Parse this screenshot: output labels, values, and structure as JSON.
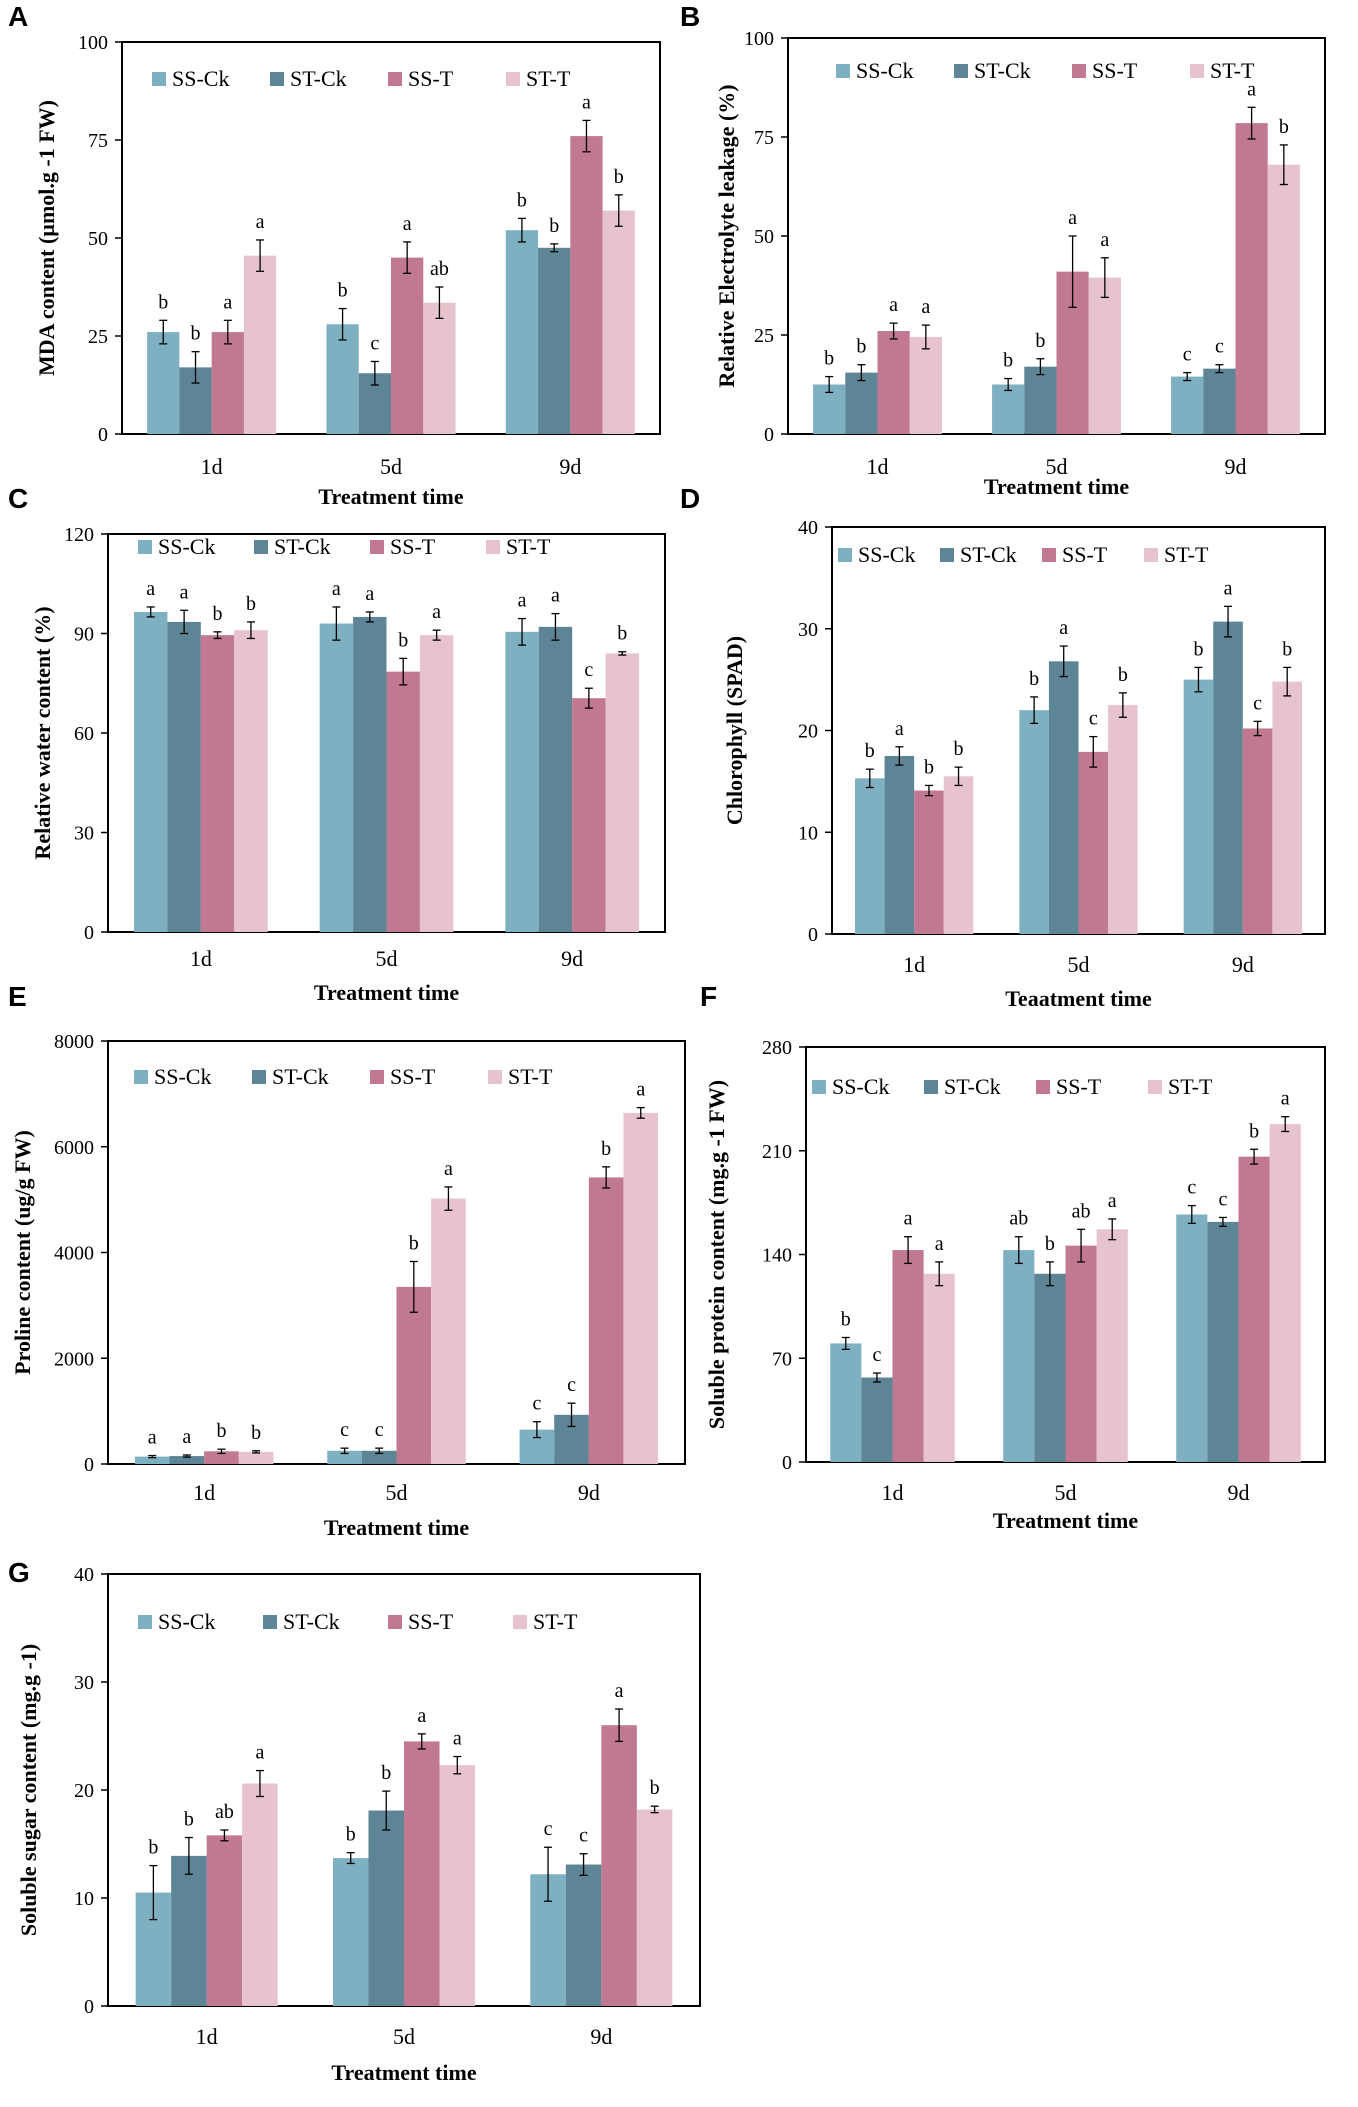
{
  "colors": {
    "SS-Ck": "#7fb0c2",
    "ST-Ck": "#5e8595",
    "SS-T": "#c07991",
    "ST-T": "#e7c4cd"
  },
  "chart_data": [
    {
      "panel": "A",
      "type": "bar",
      "categories": [
        "1d",
        "5d",
        "9d"
      ],
      "xlabel": "Treatment time",
      "ylabel": "MDA content (µmol.g -1 FW)",
      "ylim": [
        0,
        100
      ],
      "yticks": [
        "0",
        "25",
        "50",
        "75",
        "100"
      ],
      "legend": [
        "SS-Ck",
        "ST-Ck",
        "SS-T",
        "ST-T"
      ],
      "series": [
        {
          "name": "SS-Ck",
          "values": [
            26,
            28,
            52
          ],
          "errors": [
            3,
            4,
            3
          ],
          "labels": [
            "b",
            "b",
            "b"
          ]
        },
        {
          "name": "ST-Ck",
          "values": [
            17,
            15.5,
            47.5
          ],
          "errors": [
            4,
            3,
            1
          ],
          "labels": [
            "b",
            "c",
            "b"
          ]
        },
        {
          "name": "SS-T",
          "values": [
            26,
            45,
            76
          ],
          "errors": [
            3,
            4,
            4
          ],
          "labels": [
            "a",
            "a",
            "a"
          ]
        },
        {
          "name": "ST-T",
          "values": [
            45.5,
            33.5,
            57
          ],
          "errors": [
            4,
            4,
            4
          ],
          "labels": [
            "a",
            "ab",
            "b"
          ]
        }
      ]
    },
    {
      "panel": "B",
      "type": "bar",
      "categories": [
        "1d",
        "5d",
        "9d"
      ],
      "xlabel": "Treatment time",
      "ylabel": "Relative Electrolyte leakage (%)",
      "ylim": [
        0,
        100
      ],
      "yticks": [
        "0",
        "25",
        "50",
        "75",
        "100"
      ],
      "legend": [
        "SS-Ck",
        "ST-Ck",
        "SS-T",
        "ST-T"
      ],
      "series": [
        {
          "name": "SS-Ck",
          "values": [
            12.5,
            12.5,
            14.5
          ],
          "errors": [
            2,
            1.5,
            1
          ],
          "labels": [
            "b",
            "b",
            "c"
          ]
        },
        {
          "name": "ST-Ck",
          "values": [
            15.5,
            17,
            16.5
          ],
          "errors": [
            2,
            2,
            1
          ],
          "labels": [
            "b",
            "b",
            "c"
          ]
        },
        {
          "name": "SS-T",
          "values": [
            26,
            41,
            78.5
          ],
          "errors": [
            2,
            9,
            4
          ],
          "labels": [
            "a",
            "a",
            "a"
          ]
        },
        {
          "name": "ST-T",
          "values": [
            24.5,
            39.5,
            68
          ],
          "errors": [
            3,
            5,
            5
          ],
          "labels": [
            "a",
            "a",
            "b"
          ]
        }
      ]
    },
    {
      "panel": "C",
      "type": "bar",
      "categories": [
        "1d",
        "5d",
        "9d"
      ],
      "xlabel": "Treatment time",
      "ylabel": "Relative water content (%)",
      "ylim": [
        0,
        120
      ],
      "yticks": [
        "0",
        "30",
        "60",
        "90",
        "120"
      ],
      "legend": [
        "SS-Ck",
        "ST-Ck",
        "SS-T",
        "ST-T"
      ],
      "series": [
        {
          "name": "SS-Ck",
          "values": [
            96.5,
            93,
            90.5
          ],
          "errors": [
            1.5,
            5,
            4
          ],
          "labels": [
            "a",
            "a",
            "a"
          ]
        },
        {
          "name": "ST-Ck",
          "values": [
            93.5,
            95,
            92
          ],
          "errors": [
            3.5,
            1.5,
            4
          ],
          "labels": [
            "a",
            "a",
            "a"
          ]
        },
        {
          "name": "SS-T",
          "values": [
            89.5,
            78.5,
            70.5
          ],
          "errors": [
            1,
            4,
            3
          ],
          "labels": [
            "b",
            "b",
            "c"
          ]
        },
        {
          "name": "ST-T",
          "values": [
            91,
            89.5,
            84
          ],
          "errors": [
            2.5,
            1.5,
            0.5
          ],
          "labels": [
            "b",
            "a",
            "b"
          ]
        }
      ]
    },
    {
      "panel": "D",
      "type": "bar",
      "categories": [
        "1d",
        "5d",
        "9d"
      ],
      "xlabel": "Teaatment time",
      "ylabel": "Chlorophyll (SPAD)",
      "ylim": [
        0,
        40
      ],
      "yticks": [
        "0",
        "10",
        "20",
        "30",
        "40"
      ],
      "legend": [
        "SS-Ck",
        "ST-Ck",
        "SS-T",
        "ST-T"
      ],
      "series": [
        {
          "name": "SS-Ck",
          "values": [
            15.3,
            22,
            25
          ],
          "errors": [
            0.9,
            1.3,
            1.2
          ],
          "labels": [
            "b",
            "b",
            "b"
          ]
        },
        {
          "name": "ST-Ck",
          "values": [
            17.5,
            26.8,
            30.7
          ],
          "errors": [
            0.9,
            1.5,
            1.5
          ],
          "labels": [
            "a",
            "a",
            "a"
          ]
        },
        {
          "name": "SS-T",
          "values": [
            14.1,
            17.9,
            20.2
          ],
          "errors": [
            0.5,
            1.5,
            0.7
          ],
          "labels": [
            "b",
            "c",
            "c"
          ]
        },
        {
          "name": "ST-T",
          "values": [
            15.5,
            22.5,
            24.8
          ],
          "errors": [
            0.9,
            1.2,
            1.4
          ],
          "labels": [
            "b",
            "b",
            "b"
          ]
        }
      ]
    },
    {
      "panel": "E",
      "type": "bar",
      "categories": [
        "1d",
        "5d",
        "9d"
      ],
      "xlabel": "Treatment time",
      "ylabel": "Proline content (ug/g FW)",
      "ylim": [
        0,
        8000
      ],
      "yticks": [
        "0",
        "2000",
        "4000",
        "6000",
        "8000"
      ],
      "legend": [
        "SS-Ck",
        "ST-Ck",
        "SS-T",
        "ST-T"
      ],
      "series": [
        {
          "name": "SS-Ck",
          "values": [
            140,
            250,
            650
          ],
          "errors": [
            20,
            50,
            150
          ],
          "labels": [
            "a",
            "c",
            "c"
          ]
        },
        {
          "name": "ST-Ck",
          "values": [
            150,
            250,
            930
          ],
          "errors": [
            20,
            50,
            220
          ],
          "labels": [
            "a",
            "c",
            "c"
          ]
        },
        {
          "name": "SS-T",
          "values": [
            240,
            3350,
            5420
          ],
          "errors": [
            40,
            480,
            200
          ],
          "labels": [
            "b",
            "b",
            "b"
          ]
        },
        {
          "name": "ST-T",
          "values": [
            230,
            5020,
            6640
          ],
          "errors": [
            20,
            220,
            100
          ],
          "labels": [
            "b",
            "a",
            "a"
          ]
        }
      ]
    },
    {
      "panel": "F",
      "type": "bar",
      "categories": [
        "1d",
        "5d",
        "9d"
      ],
      "xlabel": "Treatment time",
      "ylabel": "Soluble protein content (mg.g -1 FW)",
      "ylim": [
        0,
        280
      ],
      "yticks": [
        "0",
        "70",
        "140",
        "210",
        "280"
      ],
      "legend": [
        "SS-Ck",
        "ST-Ck",
        "SS-T",
        "ST-T"
      ],
      "series": [
        {
          "name": "SS-Ck",
          "values": [
            80,
            143,
            167
          ],
          "errors": [
            4,
            9,
            6
          ],
          "labels": [
            "b",
            "ab",
            "c"
          ]
        },
        {
          "name": "ST-Ck",
          "values": [
            57,
            127,
            162
          ],
          "errors": [
            3,
            8,
            3
          ],
          "labels": [
            "c",
            "b",
            "c"
          ]
        },
        {
          "name": "SS-T",
          "values": [
            143,
            146,
            206
          ],
          "errors": [
            9,
            11,
            5
          ],
          "labels": [
            "a",
            "ab",
            "b"
          ]
        },
        {
          "name": "ST-T",
          "values": [
            127,
            157,
            228
          ],
          "errors": [
            8,
            7,
            5
          ],
          "labels": [
            "a",
            "a",
            "a"
          ]
        }
      ]
    },
    {
      "panel": "G",
      "type": "bar",
      "categories": [
        "1d",
        "5d",
        "9d"
      ],
      "xlabel": "Treatment time",
      "ylabel": "Soluble sugar content (mg.g -1)",
      "ylim": [
        0,
        40
      ],
      "yticks": [
        "0",
        "10",
        "20",
        "30",
        "40"
      ],
      "legend": [
        "SS-Ck",
        "ST-Ck",
        "SS-T",
        "ST-T"
      ],
      "series": [
        {
          "name": "SS-Ck",
          "values": [
            10.5,
            13.7,
            12.2
          ],
          "errors": [
            2.5,
            0.5,
            2.5
          ],
          "labels": [
            "b",
            "b",
            "c"
          ]
        },
        {
          "name": "ST-Ck",
          "values": [
            13.9,
            18.1,
            13.1
          ],
          "errors": [
            1.7,
            1.8,
            1
          ],
          "labels": [
            "b",
            "b",
            "c"
          ]
        },
        {
          "name": "SS-T",
          "values": [
            15.8,
            24.5,
            26
          ],
          "errors": [
            0.5,
            0.7,
            1.5
          ],
          "labels": [
            "ab",
            "a",
            "a"
          ]
        },
        {
          "name": "ST-T",
          "values": [
            20.6,
            22.3,
            18.2
          ],
          "errors": [
            1.2,
            0.8,
            0.3
          ],
          "labels": [
            "a",
            "a",
            "b"
          ]
        }
      ]
    }
  ]
}
